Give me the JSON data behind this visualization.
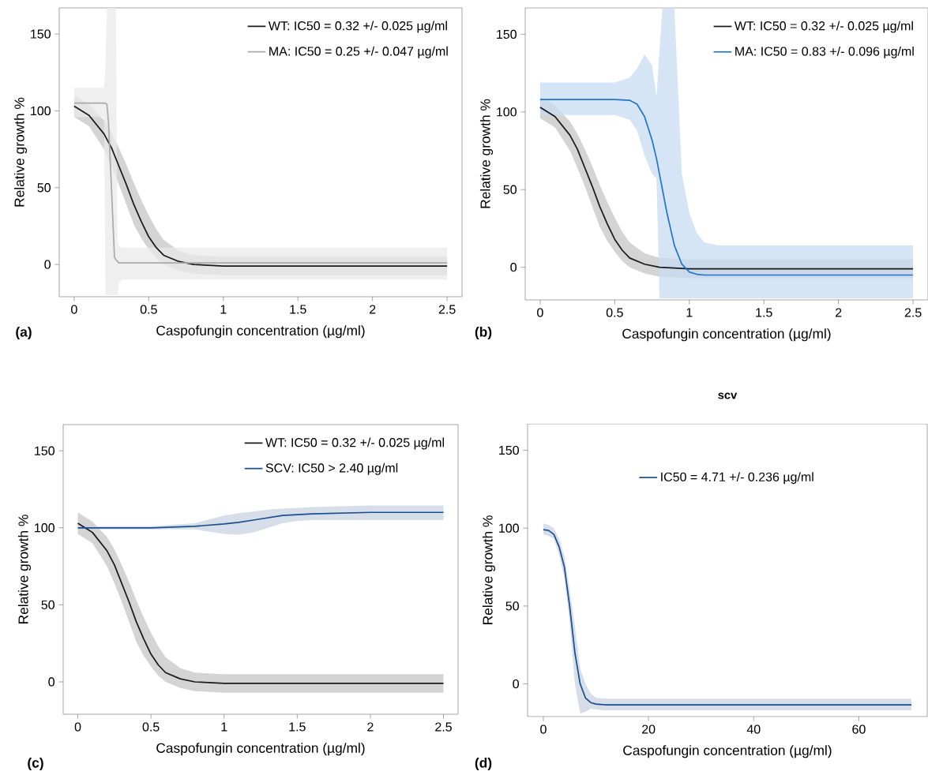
{
  "chart_data": [
    {
      "type": "line",
      "xlabel": "Caspofungin concentration (µg/ml)",
      "ylabel": "Relative growth %",
      "annotations": [
        "(a)"
      ],
      "legend": "top right",
      "xlim": [
        -0.1,
        2.6
      ],
      "ylim": [
        -21,
        167
      ],
      "xticks": [
        0,
        0.5,
        1,
        1.5,
        2,
        2.5
      ],
      "yticks": [
        0,
        50,
        100,
        150
      ],
      "series": [
        {
          "name": "WT: IC50 = 0.32 +/- 0.025 µg/ml",
          "color": "#1a1a1a",
          "x": [
            0,
            0.1,
            0.2,
            0.25,
            0.3,
            0.35,
            0.4,
            0.45,
            0.5,
            0.55,
            0.6,
            0.7,
            0.8,
            1.0,
            1.5,
            2.5
          ],
          "values": [
            103,
            97,
            85,
            76,
            64,
            52,
            39,
            28,
            18,
            11,
            6,
            2,
            0,
            -1,
            -1,
            -1
          ],
          "upper": [
            110,
            104,
            94,
            86,
            76,
            65,
            53,
            42,
            32,
            23,
            16,
            9,
            6,
            5,
            5,
            5
          ],
          "lower": [
            96,
            90,
            75,
            64,
            52,
            39,
            26,
            17,
            10,
            4,
            0,
            -4,
            -6,
            -7,
            -7,
            -7
          ]
        },
        {
          "name": "MA: IC50 = 0.25 +/- 0.047 µg/ml",
          "color": "#aaaaaa",
          "x": [
            0,
            0.2,
            0.21,
            0.22,
            0.23,
            0.25,
            0.27,
            0.28,
            0.29,
            0.3,
            0.32,
            2.5
          ],
          "values": [
            105,
            105,
            105,
            104,
            93,
            50,
            5,
            3,
            2,
            1,
            1,
            1
          ],
          "upper": [
            115,
            115,
            130,
            167,
            167,
            167,
            167,
            167,
            15,
            12,
            11,
            11
          ],
          "lower": [
            96,
            96,
            -20,
            -20,
            -20,
            -20,
            -20,
            -20,
            -20,
            -12,
            -10,
            -10
          ]
        }
      ]
    },
    {
      "type": "line",
      "xlabel": "Caspofungin concentration (µg/ml)",
      "ylabel": "Relative growth %",
      "annotations": [
        "(b)"
      ],
      "legend": "top right",
      "xlim": [
        -0.1,
        2.6
      ],
      "ylim": [
        -21,
        167
      ],
      "xticks": [
        0,
        0.5,
        1,
        1.5,
        2,
        2.5
      ],
      "yticks": [
        0,
        50,
        100,
        150
      ],
      "series": [
        {
          "name": "WT: IC50 = 0.32 +/- 0.025 µg/ml",
          "color": "#1a1a1a",
          "x": [
            0,
            0.1,
            0.2,
            0.25,
            0.3,
            0.35,
            0.4,
            0.45,
            0.5,
            0.55,
            0.6,
            0.7,
            0.8,
            1.0,
            1.5,
            2.5
          ],
          "values": [
            103,
            97,
            85,
            76,
            64,
            52,
            39,
            28,
            18,
            11,
            6,
            2,
            0,
            -1,
            -1,
            -1
          ],
          "upper": [
            110,
            104,
            94,
            86,
            76,
            65,
            53,
            42,
            32,
            23,
            16,
            9,
            6,
            5,
            5,
            5
          ],
          "lower": [
            96,
            90,
            75,
            64,
            52,
            39,
            26,
            17,
            10,
            4,
            0,
            -4,
            -6,
            -7,
            -7,
            -7
          ]
        },
        {
          "name": "MA: IC50 = 0.83 +/- 0.096 µg/ml",
          "color": "#2474d0",
          "x": [
            0,
            0.5,
            0.6,
            0.65,
            0.7,
            0.75,
            0.78,
            0.8,
            0.82,
            0.85,
            0.9,
            0.95,
            1.0,
            1.05,
            1.1,
            1.2,
            1.5,
            2.5
          ],
          "values": [
            108,
            108,
            107.5,
            105,
            97,
            82,
            70,
            60,
            50,
            35,
            14,
            2,
            -3,
            -4.5,
            -5,
            -5,
            -5,
            -5
          ],
          "upper": [
            119,
            119,
            122,
            128,
            137,
            130,
            110,
            140,
            167,
            167,
            167,
            60,
            35,
            22,
            16,
            14,
            14,
            14
          ],
          "lower": [
            98,
            98,
            95,
            88,
            72,
            60,
            57,
            -20,
            -20,
            -20,
            -20,
            -20,
            -20,
            -20,
            -20,
            -20,
            -20,
            -20
          ]
        }
      ]
    },
    {
      "type": "line",
      "xlabel": "Caspofungin concentration (µg/ml)",
      "ylabel": "Relative growth %",
      "annotations": [
        "(c)"
      ],
      "legend": "top right",
      "xlim": [
        -0.1,
        2.6
      ],
      "ylim": [
        -21,
        167
      ],
      "xticks": [
        0,
        0.5,
        1,
        1.5,
        2,
        2.5
      ],
      "yticks": [
        0,
        50,
        100,
        150
      ],
      "series": [
        {
          "name": "WT: IC50 = 0.32 +/- 0.025 µg/ml",
          "color": "#1a1a1a",
          "x": [
            0,
            0.1,
            0.2,
            0.25,
            0.3,
            0.35,
            0.4,
            0.45,
            0.5,
            0.55,
            0.6,
            0.7,
            0.8,
            1.0,
            1.5,
            2.5
          ],
          "values": [
            103,
            97,
            85,
            76,
            64,
            52,
            39,
            28,
            18,
            11,
            6,
            2,
            0,
            -1,
            -1,
            -1
          ],
          "upper": [
            110,
            104,
            94,
            86,
            76,
            65,
            53,
            42,
            32,
            23,
            16,
            9,
            6,
            5,
            5,
            5
          ],
          "lower": [
            96,
            90,
            75,
            64,
            52,
            39,
            26,
            17,
            10,
            4,
            0,
            -4,
            -6,
            -7,
            -7,
            -7
          ]
        },
        {
          "name": "SCV: IC50 > 2.40 µg/ml",
          "color": "#1f4e8c",
          "x": [
            0,
            0.5,
            0.8,
            1.0,
            1.1,
            1.2,
            1.3,
            1.4,
            1.5,
            1.6,
            2.0,
            2.5
          ],
          "values": [
            100,
            100,
            101,
            102.5,
            103.5,
            105,
            106.5,
            108,
            108.5,
            109,
            110,
            110
          ],
          "upper": [
            101,
            101,
            103,
            108,
            109.5,
            110.5,
            111.8,
            112.5,
            113,
            113.5,
            114.5,
            114.5
          ],
          "lower": [
            99,
            99,
            99,
            96,
            95.5,
            97,
            100,
            103,
            104.5,
            105,
            105,
            105
          ]
        }
      ]
    },
    {
      "type": "line",
      "title": "scv",
      "xlabel": "Caspofungin concentration (µg/ml)",
      "ylabel": "Relative growth %",
      "annotations": [
        "(d)"
      ],
      "legend": "top",
      "xlim": [
        -3,
        73
      ],
      "ylim": [
        -21,
        167
      ],
      "xticks": [
        0,
        20,
        40,
        60
      ],
      "yticks": [
        0,
        50,
        100,
        150
      ],
      "series": [
        {
          "name": "IC50 = 4.71 +/- 0.236 µg/ml",
          "color": "#1f4e8c",
          "x": [
            0,
            1,
            2,
            3,
            4,
            5,
            6,
            7,
            8,
            9,
            10,
            12,
            20,
            70
          ],
          "values": [
            99,
            98.5,
            96,
            88,
            75,
            50,
            20,
            0,
            -9,
            -12,
            -13,
            -13.5,
            -13.5,
            -13.5
          ],
          "upper": [
            103,
            102,
            100,
            93,
            82,
            60,
            37,
            10,
            0,
            -6,
            -9,
            -9.5,
            -9.5,
            -9.5
          ],
          "lower": [
            96,
            95,
            93,
            83,
            68,
            40,
            0,
            -19,
            -18,
            -16,
            -16.5,
            -17,
            -17,
            -17
          ]
        }
      ]
    }
  ]
}
